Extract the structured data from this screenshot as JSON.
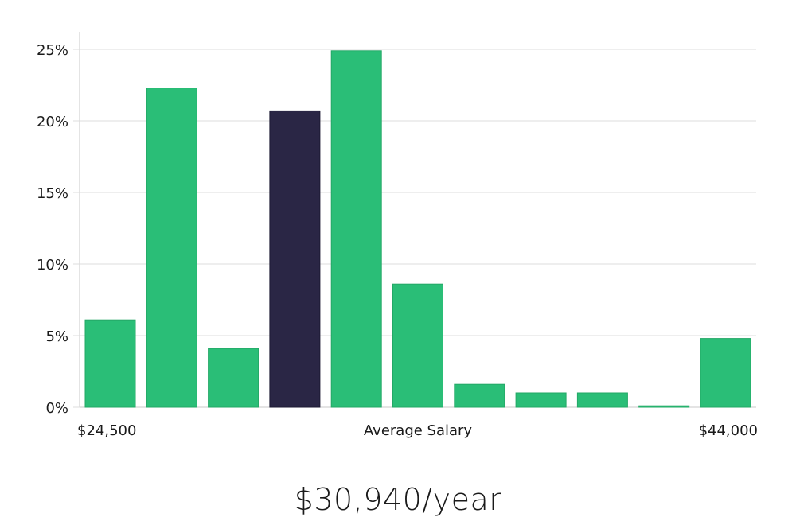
{
  "chart_data": {
    "type": "bar",
    "title": "",
    "xlabel": "Average Salary",
    "ylabel": "",
    "x_min_label": "$24,500",
    "x_max_label": "$44,000",
    "ylim": [
      0,
      26
    ],
    "y_ticks": [
      0,
      5,
      10,
      15,
      20,
      25
    ],
    "y_tick_labels": [
      "0%",
      "5%",
      "10%",
      "15%",
      "20%",
      "25%"
    ],
    "values": [
      6.1,
      22.3,
      4.1,
      20.7,
      24.9,
      8.6,
      1.6,
      1.0,
      1.0,
      0.1,
      4.8
    ],
    "highlight_index": 3,
    "colors": {
      "bar": "#2abe77",
      "bar_edge": "#23a866",
      "highlight": "#2a2645",
      "grid": "#dcdcdc",
      "axis": "#c8c8c8"
    }
  },
  "summary": {
    "salary": "$30,940/year"
  }
}
